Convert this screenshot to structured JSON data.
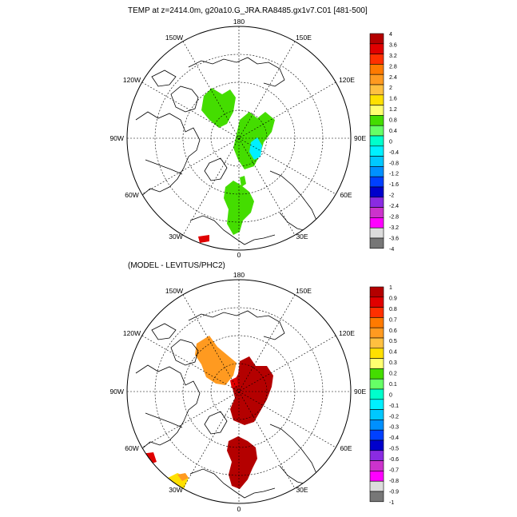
{
  "chart_data": [
    {
      "type": "heatmap",
      "projection": "north-polar-stereographic",
      "title": "TEMP at z=2414.0m, g20a10.G_JRA.RA8485.gx1v7.C01 [481-500]",
      "lon_labels": [
        "180",
        "150E",
        "120E",
        "90E",
        "60E",
        "30E",
        "0",
        "30W",
        "60W",
        "90W",
        "120W",
        "150W"
      ],
      "colorbar_levels": [
        "4",
        "3.6",
        "3.2",
        "2.8",
        "2.4",
        "2",
        "1.6",
        "1.2",
        "0.8",
        "0.4",
        "0",
        "-0.4",
        "-0.8",
        "-1.2",
        "-1.6",
        "-2",
        "-2.4",
        "-2.8",
        "-3.2",
        "-3.6",
        "-4"
      ],
      "colorbar_colors": [
        "#b40000",
        "#e00000",
        "#ff3000",
        "#ff7a00",
        "#ff9a20",
        "#ffc040",
        "#ffe000",
        "#ffff70",
        "#44dd00",
        "#66ff66",
        "#00ffcc",
        "#00f0ff",
        "#00c8ff",
        "#0090ff",
        "#0040ff",
        "#0000cc",
        "#8a2be2",
        "#cc33cc",
        "#ff00ff",
        "#dcdcdc",
        "#777777"
      ]
    },
    {
      "type": "heatmap",
      "projection": "north-polar-stereographic",
      "title": "(MODEL - LEVITUS/PHC2)",
      "lon_labels": [
        "180",
        "150E",
        "120E",
        "90E",
        "60E",
        "30E",
        "0",
        "30W",
        "60W",
        "90W",
        "120W",
        "150W"
      ],
      "colorbar_levels": [
        "1",
        "0.9",
        "0.8",
        "0.7",
        "0.6",
        "0.5",
        "0.4",
        "0.3",
        "0.2",
        "0.1",
        "0",
        "-0.1",
        "-0.2",
        "-0.3",
        "-0.4",
        "-0.5",
        "-0.6",
        "-0.7",
        "-0.8",
        "-0.9",
        "-1"
      ],
      "colorbar_colors": [
        "#b40000",
        "#e00000",
        "#ff3000",
        "#ff7a00",
        "#ff9a20",
        "#ffc040",
        "#ffe000",
        "#ffff70",
        "#44dd00",
        "#66ff66",
        "#00ffcc",
        "#00f0ff",
        "#00c8ff",
        "#0090ff",
        "#0040ff",
        "#0000cc",
        "#8a2be2",
        "#cc33cc",
        "#ff00ff",
        "#dcdcdc",
        "#777777"
      ]
    }
  ],
  "colors": {
    "land_outline": "#000000",
    "grid": "#000000",
    "positive_small": "#44dd00",
    "negative_small": "#00f0ff",
    "positive_large": "#b40000",
    "orange": "#ff9a20"
  }
}
